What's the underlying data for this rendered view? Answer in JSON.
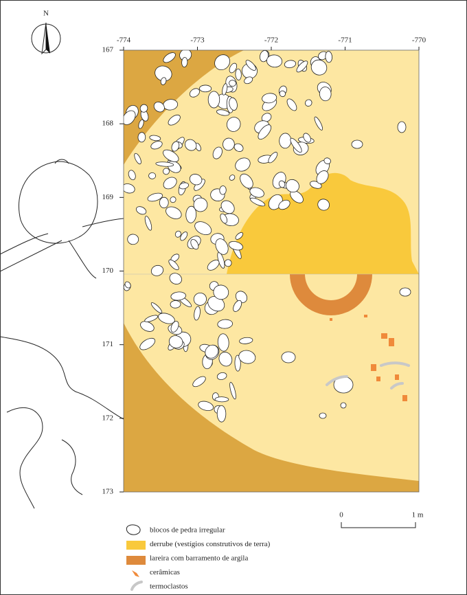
{
  "north_arrow": {
    "label": "N"
  },
  "grid": {
    "x_labels": [
      -774,
      -773,
      -772,
      -771,
      -770
    ],
    "y_labels": [
      167,
      168,
      169,
      170,
      171,
      172,
      173
    ]
  },
  "scale_bar": {
    "start": "0",
    "end": "1 m"
  },
  "legend": {
    "items": [
      {
        "label": "blocos de pedra irregular"
      },
      {
        "label": "derrube (vestígios construtivos de terra)"
      },
      {
        "label": "lareira com barramento de argila"
      },
      {
        "label": "cerâmicas"
      },
      {
        "label": "termoclastos"
      }
    ]
  }
}
